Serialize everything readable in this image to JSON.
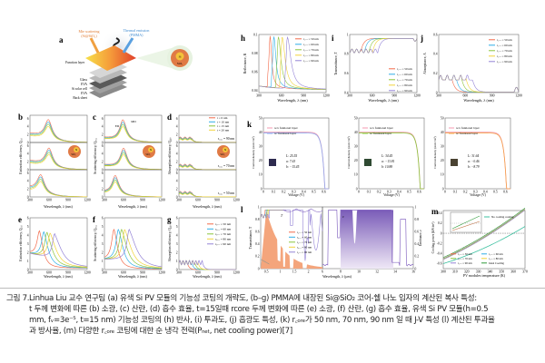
{
  "caption": {
    "label": "그림 7.",
    "lines": [
      "Linhua Liu 교수 연구팀 (a) 유색 Si PV 모듈의 기능성 코팅의 개략도, (b–g) PMMA에 내장된 Si@SiO₂ 코어-쉘 나노 입자의 계산된 복사 특성:",
      "t 두께 변화에 따른 (b) 소광, (c) 산란, (d) 흡수 효율, t=15일때 rcore 두께 변화에 따른 (e) 소광, (f) 산란, (g) 흡수 효율, 유색 Si PV 모듈(h=0.5",
      "mm, fᵥ=3e⁻⁵, t=15 nm) 기능성 코팅의 (h) 반사, (i) 투과도, (j) 흡광도 특성, (k) r꜀ₒᵣₑ가 50 nm, 70 nm, 90 nm 일 때 J-V 특성 (l) 계산된 투과율",
      "과 방사율, (m) 다양한 r꜀ₒᵣₑ 코팅에 대한 순 냉각 전력(Pₙₑₜ, net cooling power)[7]"
    ]
  },
  "colors": {
    "series": [
      "#f26a4a",
      "#2eaee6",
      "#8cc43c",
      "#f2d23a",
      "#9483d6"
    ],
    "pink": "#f49ab0",
    "solar": "#f4a57c",
    "emit": "#8a6cc4"
  },
  "schematic": {
    "label": "a",
    "mie": "Mie scattering",
    "mie_sub": "(Si@SiO₂)",
    "thermal": "Thermal emission",
    "thermal_sub": "(PMMA)",
    "function_layer": "Function layer",
    "layers": [
      "Glass",
      "EVA",
      "Si solar cell",
      "EVA",
      "Back sheet"
    ],
    "core": "Si",
    "shell": "SiO₂"
  },
  "t_legend": [
    "t = 0 nm",
    "t = 10 nm",
    "t = 15 nm",
    "t = 20 nm"
  ],
  "rcore_legend": [
    "r꜀ₒᵣₑ = 50 nm",
    "r꜀ₒᵣₑ = 60 nm",
    "r꜀ₒᵣₑ = 70 nm",
    "r꜀ₒᵣₑ = 80 nm",
    "r꜀ₒᵣₑ = 90 nm"
  ],
  "wavelength_label": "Wavelength, λ (nm)",
  "wl_ticks": [
    300,
    600,
    900,
    1200
  ],
  "panels_bcd": {
    "subplots": [
      {
        "r_core_label": "r꜀ₒᵣₑ = 90 nm",
        "peak": 590,
        "max": 6.5
      },
      {
        "r_core_label": "r꜀ₒᵣₑ = 70 nm",
        "peak": 600,
        "max": 6.2
      },
      {
        "r_core_label": "r꜀ₒᵣₑ = 50 nm",
        "peak": 470,
        "max": 6.0
      }
    ],
    "b": {
      "label": "b",
      "ylabel": "Extinction efficiency, Qₑₓₜ"
    },
    "c": {
      "label": "c",
      "ylabel": "Scattering efficiency, Qₛ꜀ₐ",
      "annotations": [
        "ED",
        "MD"
      ]
    },
    "d": {
      "label": "d",
      "ylabel": "Absorption efficiency, Qₐᵦₛ"
    },
    "yticks": [
      0,
      2,
      4,
      6
    ],
    "particle_core": "Si",
    "particle_shell": "SiO₂"
  },
  "panels_efg": {
    "peaks_nm": [
      450,
      520,
      570,
      620,
      690
    ],
    "e": {
      "label": "e",
      "ylabel": "Extinction efficiency, Qₑₓₜ"
    },
    "f": {
      "label": "f",
      "ylabel": "Scattering efficiency, Qₛ꜀ₐ"
    },
    "g": {
      "label": "g",
      "ylabel": "Absorption efficiency, Qₐᵦₛ"
    },
    "yticks": [
      0,
      1,
      2,
      3,
      4,
      5,
      6
    ]
  },
  "panel_h": {
    "label": "h",
    "ylabel": "Reflectance, R",
    "yticks": [
      0.04,
      0.06,
      0.08,
      0.1
    ],
    "peaks_nm": [
      450,
      500,
      560,
      610,
      680
    ]
  },
  "panel_i": {
    "label": "i",
    "ylabel": "Transmittance, T",
    "yticks": [
      0.4,
      0.6,
      0.8,
      1.0
    ]
  },
  "panel_j": {
    "label": "j",
    "ylabel": "Absorptance, A",
    "yticks": [
      0,
      0.2,
      0.4,
      0.6
    ]
  },
  "panel_k": {
    "label": "k",
    "ylabel": "Current density (mA/cm²)",
    "xlabel": "Voltage (V)",
    "xticks": [
      0.0,
      0.1,
      0.2,
      0.3,
      0.4,
      0.5,
      0.6
    ],
    "yticks": [
      0,
      10,
      20,
      30,
      40,
      50
    ],
    "legend_without": "w/o funtional layer",
    "legend_with": "w/ funtional layer",
    "jsc": 40,
    "voc": 0.61,
    "cells": [
      {
        "L": "L: 25.55",
        "a": "a: 7.63",
        "b": "b: −15.45",
        "swatch": "#2e2b4f",
        "color": "#8fa6ec"
      },
      {
        "L": "L: 34.45",
        "a": "a: −13.81",
        "b": "b: 10.88",
        "swatch": "#2f4a32",
        "color": "#8cc43c"
      },
      {
        "L": "L: 31.64",
        "a": "a: −0.46",
        "b": "b: −8.79",
        "swatch": "#4a4232",
        "color": "#f5a04a"
      }
    ]
  },
  "panel_l": {
    "label": "l",
    "ylabel_left": "Transmittance, T",
    "ylabel_right": "Emittance, ε",
    "xlabel": "Wavelength, λ (μm)",
    "xticks_left": [
      0.5,
      1.0,
      1.5,
      2.0
    ],
    "xticks_right": [
      6,
      8,
      10,
      12,
      14,
      16
    ],
    "yticks": [
      0.0,
      0.2,
      0.4,
      0.6,
      0.8,
      1.0
    ],
    "T_mark": "T",
    "e_mark": "ε"
  },
  "panel_m": {
    "label": "m",
    "ylabel": "Cooling power (kW/m²)",
    "xlabel": "PV modules temperature (K)",
    "xticks": [
      300,
      310,
      320,
      330,
      340,
      350,
      360,
      370
    ],
    "yticks": [
      -0.6,
      -0.4,
      -0.2,
      0.0,
      0.2,
      0.4
    ],
    "legend": [
      "r꜀ₒᵣₑ = 50 nm",
      "r꜀ₒᵣₑ = 60 nm",
      "r꜀ₒᵣₑ = 70 nm",
      "r꜀ₒᵣₑ = 80 nm",
      "r꜀ₒᵣₑ = 90 nm",
      "Ideal Cooling"
    ],
    "no_cooling": "No cooling coating",
    "ideal_color": "#2f9a3a",
    "no_cooling_color": "#3cc0a0"
  }
}
